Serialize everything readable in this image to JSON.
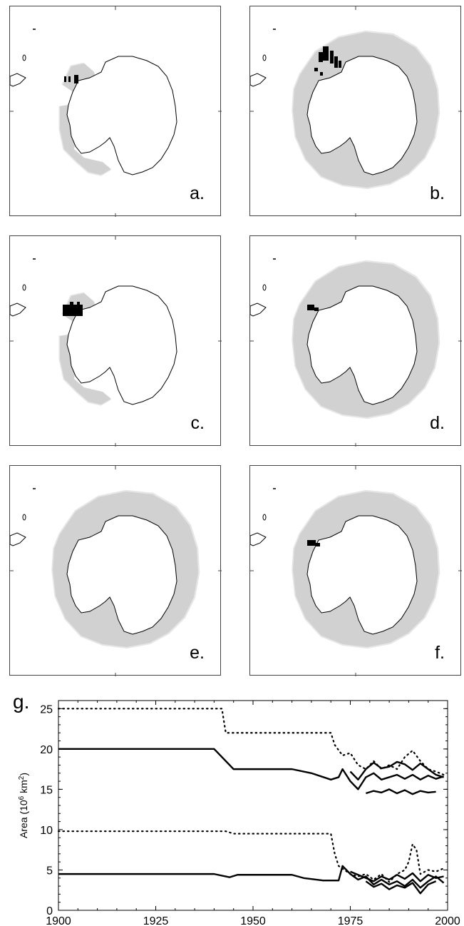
{
  "panels": [
    {
      "label": "a."
    },
    {
      "label": "b."
    },
    {
      "label": "c."
    },
    {
      "label": "d."
    },
    {
      "label": "e."
    },
    {
      "label": "f."
    }
  ],
  "colors": {
    "ice_light": "#e6e6e6",
    "ice_mid": "#cdcdcd",
    "ice_dark": "#b4b4b4",
    "land_outline": "#000000",
    "black_patch": "#000000"
  },
  "chart_data": {
    "type": "line",
    "panel_label": "g.",
    "title": "",
    "xlabel": "",
    "ylabel_prefix": "Area (10",
    "ylabel_sup1": "6",
    "ylabel_mid": " km",
    "ylabel_sup2": "2",
    "ylabel_suffix": ")",
    "xlim": [
      1900,
      2000
    ],
    "ylim": [
      0,
      26
    ],
    "xticks": [
      1900,
      1925,
      1950,
      1975,
      2000
    ],
    "yticks": [
      0,
      5,
      10,
      15,
      20,
      25
    ],
    "grid": false,
    "series": [
      {
        "style": "dotted",
        "x": [
          1900,
          1942,
          1943,
          1970,
          1971,
          1973,
          1975,
          1977,
          1979,
          1981,
          1983,
          1985,
          1987,
          1989,
          1991,
          1993,
          1995,
          1997,
          1999
        ],
        "y": [
          25,
          25,
          22,
          22,
          20.5,
          19.2,
          19.5,
          18,
          17.5,
          18.5,
          17.5,
          18,
          17.5,
          19,
          19.8,
          18.5,
          17.5,
          17.2,
          16.8
        ]
      },
      {
        "style": "solid",
        "x": [
          1900,
          1940,
          1945,
          1960,
          1965,
          1970,
          1972,
          1973,
          1975,
          1977,
          1979,
          1981,
          1983,
          1985,
          1987,
          1989,
          1991,
          1993,
          1995,
          1997,
          1999
        ],
        "y": [
          20,
          20,
          17.5,
          17.5,
          17,
          16.2,
          16.5,
          17.5,
          16,
          15,
          16.5,
          17,
          16.2,
          16.5,
          16.8,
          16.3,
          16.8,
          16.2,
          16.7,
          16.3,
          16.6
        ]
      },
      {
        "style": "solid",
        "x": [
          1975,
          1977,
          1979,
          1981,
          1983,
          1985,
          1987,
          1989,
          1991,
          1993,
          1995,
          1997,
          1999
        ],
        "y": [
          17.2,
          16.2,
          17.5,
          18.3,
          17.6,
          17.8,
          18.4,
          18.1,
          17.4,
          18.2,
          17.5,
          16.8,
          16.5
        ]
      },
      {
        "style": "solid",
        "x": [
          1979,
          1981,
          1983,
          1985,
          1987,
          1989,
          1991,
          1993,
          1995,
          1997
        ],
        "y": [
          14.5,
          14.8,
          14.6,
          15,
          14.5,
          14.9,
          14.4,
          14.8,
          14.6,
          14.7
        ]
      },
      {
        "style": "dotted",
        "x": [
          1900,
          1943,
          1945,
          1970,
          1971,
          1972,
          1975,
          1977,
          1979,
          1981,
          1983,
          1985,
          1987,
          1989,
          1990,
          1991,
          1992,
          1993,
          1995,
          1997,
          1999
        ],
        "y": [
          9.8,
          9.8,
          9.5,
          9.5,
          7,
          5.5,
          4.5,
          4.2,
          4.5,
          3.8,
          4.5,
          3.5,
          4.5,
          5,
          6,
          8.2,
          7.5,
          4.5,
          5,
          4.8,
          5.2
        ]
      },
      {
        "style": "solid",
        "x": [
          1900,
          1940,
          1944,
          1946,
          1960,
          1963,
          1968,
          1972,
          1973,
          1975,
          1977,
          1979,
          1981,
          1983,
          1985,
          1987,
          1989,
          1991,
          1993,
          1995,
          1997,
          1999
        ],
        "y": [
          4.5,
          4.5,
          4.1,
          4.4,
          4.4,
          4.0,
          3.7,
          3.7,
          5.5,
          4.5,
          3.8,
          4.2,
          3.2,
          3.8,
          3.2,
          3.6,
          3.0,
          3.8,
          2.8,
          3.6,
          4.2,
          3.4
        ]
      },
      {
        "style": "solid",
        "x": [
          1975,
          1977,
          1979,
          1981,
          1983,
          1985,
          1987,
          1989,
          1991,
          1993,
          1995,
          1997,
          1999
        ],
        "y": [
          4.8,
          4.4,
          4.0,
          3.6,
          4.2,
          3.8,
          4.4,
          3.9,
          4.6,
          3.6,
          4.4,
          4.0,
          4.2
        ]
      },
      {
        "style": "solid",
        "x": [
          1979,
          1981,
          1983,
          1985,
          1987,
          1989,
          1991,
          1993,
          1995,
          1997
        ],
        "y": [
          3.6,
          2.9,
          3.3,
          2.6,
          3.1,
          2.8,
          3.4,
          2.1,
          3.2,
          3.6
        ]
      }
    ]
  }
}
